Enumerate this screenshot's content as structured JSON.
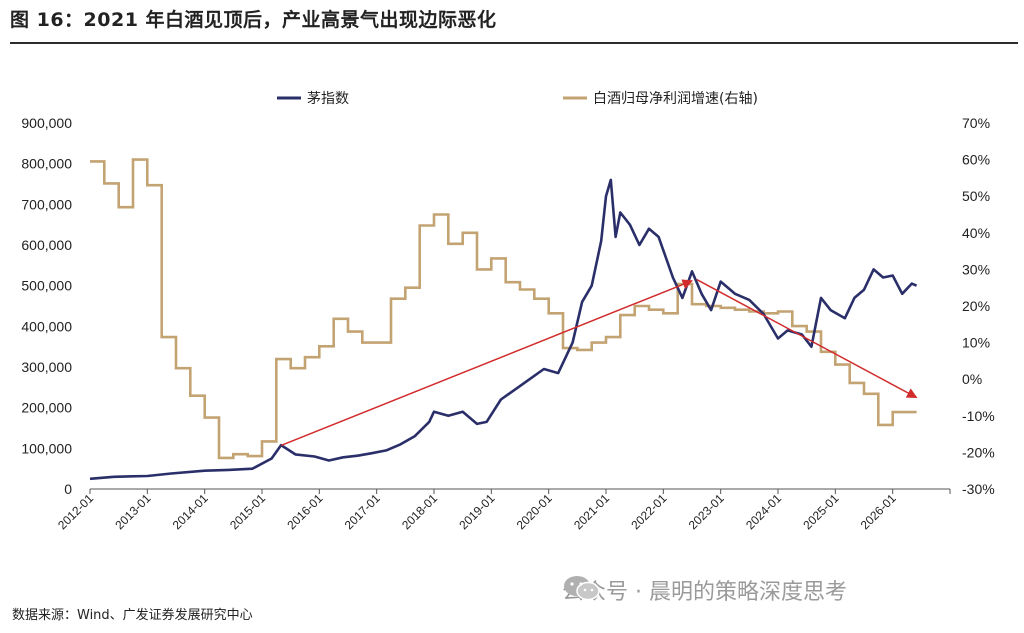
{
  "header": {
    "title": "图 16：2021 年白酒见顶后，产业高景气出现边际恶化"
  },
  "footer": {
    "source": "数据来源：Wind、广发证券发展研究中心",
    "watermark": "公众号 · 晨明的策略深度思考",
    "watermark_icon": "wechat-icon"
  },
  "colors": {
    "series1": "#2a2f6a",
    "series2": "#c4a373",
    "arrow": "#d22c2c",
    "axis": "#555555"
  },
  "chart_data": {
    "type": "line",
    "legend_position": "top",
    "grid": false,
    "x_ticks": [
      "2012-01",
      "2013-01",
      "2014-01",
      "2015-01",
      "2016-01",
      "2017-01",
      "2018-01",
      "2019-01",
      "2020-01",
      "2021-01",
      "2022-01",
      "2023-01",
      "2024-01",
      "2025-01",
      "2026-01"
    ],
    "y_left": {
      "min": 0,
      "max": 900000,
      "ticks": [
        "0",
        "100,000",
        "200,000",
        "300,000",
        "400,000",
        "500,000",
        "600,000",
        "700,000",
        "800,000",
        "900,000"
      ]
    },
    "y_right": {
      "min": -30,
      "max": 70,
      "ticks": [
        "-30%",
        "-20%",
        "-10%",
        "0%",
        "10%",
        "20%",
        "30%",
        "40%",
        "50%",
        "60%",
        "70%"
      ]
    },
    "series": [
      {
        "name": "茅指数",
        "axis": "left",
        "points": [
          [
            "2012-01",
            25000
          ],
          [
            "2012-06",
            30000
          ],
          [
            "2013-01",
            32000
          ],
          [
            "2013-06",
            38000
          ],
          [
            "2014-01",
            45000
          ],
          [
            "2014-06",
            47000
          ],
          [
            "2014-11",
            50000
          ],
          [
            "2015-03",
            75000
          ],
          [
            "2015-05",
            108000
          ],
          [
            "2015-08",
            85000
          ],
          [
            "2015-12",
            80000
          ],
          [
            "2016-03",
            70000
          ],
          [
            "2016-06",
            78000
          ],
          [
            "2016-09",
            82000
          ],
          [
            "2016-12",
            88000
          ],
          [
            "2017-03",
            95000
          ],
          [
            "2017-06",
            110000
          ],
          [
            "2017-09",
            130000
          ],
          [
            "2017-12",
            165000
          ],
          [
            "2018-01",
            190000
          ],
          [
            "2018-04",
            180000
          ],
          [
            "2018-07",
            190000
          ],
          [
            "2018-10",
            160000
          ],
          [
            "2018-12",
            165000
          ],
          [
            "2019-03",
            220000
          ],
          [
            "2019-06",
            245000
          ],
          [
            "2019-09",
            270000
          ],
          [
            "2019-12",
            295000
          ],
          [
            "2020-03",
            285000
          ],
          [
            "2020-06",
            360000
          ],
          [
            "2020-08",
            460000
          ],
          [
            "2020-10",
            500000
          ],
          [
            "2020-12",
            610000
          ],
          [
            "2021-01",
            720000
          ],
          [
            "2021-02",
            760000
          ],
          [
            "2021-03",
            620000
          ],
          [
            "2021-04",
            680000
          ],
          [
            "2021-06",
            650000
          ],
          [
            "2021-08",
            600000
          ],
          [
            "2021-10",
            640000
          ],
          [
            "2021-12",
            620000
          ],
          [
            "2022-03",
            520000
          ],
          [
            "2022-05",
            470000
          ],
          [
            "2022-07",
            535000
          ],
          [
            "2022-09",
            480000
          ],
          [
            "2022-11",
            440000
          ],
          [
            "2023-01",
            510000
          ],
          [
            "2023-04",
            480000
          ],
          [
            "2023-07",
            465000
          ],
          [
            "2023-10",
            430000
          ],
          [
            "2024-01",
            370000
          ],
          [
            "2024-03",
            390000
          ],
          [
            "2024-06",
            380000
          ],
          [
            "2024-08",
            350000
          ],
          [
            "2024-10",
            470000
          ],
          [
            "2024-12",
            440000
          ],
          [
            "2025-03",
            420000
          ],
          [
            "2025-05",
            470000
          ],
          [
            "2025-07",
            490000
          ],
          [
            "2025-09",
            540000
          ],
          [
            "2025-11",
            520000
          ],
          [
            "2026-01",
            525000
          ],
          [
            "2026-03",
            480000
          ],
          [
            "2026-05",
            505000
          ],
          [
            "2026-06",
            500000
          ]
        ]
      },
      {
        "name": "白酒归母净利润增速(右轴)",
        "axis": "right",
        "points": [
          [
            "2012-01",
            59.5
          ],
          [
            "2012-04",
            59.5
          ],
          [
            "2012-04",
            53.5
          ],
          [
            "2012-07",
            53.5
          ],
          [
            "2012-07",
            47
          ],
          [
            "2012-10",
            47
          ],
          [
            "2012-10",
            60
          ],
          [
            "2013-01",
            60
          ],
          [
            "2013-01",
            53
          ],
          [
            "2013-04",
            53
          ],
          [
            "2013-04",
            11.5
          ],
          [
            "2013-07",
            11.5
          ],
          [
            "2013-07",
            3
          ],
          [
            "2013-10",
            3
          ],
          [
            "2013-10",
            -4.5
          ],
          [
            "2014-01",
            -4.5
          ],
          [
            "2014-01",
            -10.5
          ],
          [
            "2014-04",
            -10.5
          ],
          [
            "2014-04",
            -21.5
          ],
          [
            "2014-07",
            -21.5
          ],
          [
            "2014-07",
            -20.5
          ],
          [
            "2014-10",
            -20.5
          ],
          [
            "2014-10",
            -21
          ],
          [
            "2015-01",
            -21
          ],
          [
            "2015-01",
            -17
          ],
          [
            "2015-04",
            -17
          ],
          [
            "2015-04",
            5.5
          ],
          [
            "2015-07",
            5.5
          ],
          [
            "2015-07",
            3
          ],
          [
            "2015-10",
            3
          ],
          [
            "2015-10",
            6
          ],
          [
            "2016-01",
            6
          ],
          [
            "2016-01",
            9
          ],
          [
            "2016-04",
            9
          ],
          [
            "2016-04",
            16.5
          ],
          [
            "2016-07",
            16.5
          ],
          [
            "2016-07",
            13
          ],
          [
            "2016-10",
            13
          ],
          [
            "2016-10",
            10
          ],
          [
            "2017-01",
            10
          ],
          [
            "2017-01",
            10
          ],
          [
            "2017-04",
            10
          ],
          [
            "2017-04",
            22
          ],
          [
            "2017-07",
            22
          ],
          [
            "2017-07",
            25
          ],
          [
            "2017-10",
            25
          ],
          [
            "2017-10",
            42
          ],
          [
            "2018-01",
            42
          ],
          [
            "2018-01",
            45
          ],
          [
            "2018-04",
            45
          ],
          [
            "2018-04",
            37
          ],
          [
            "2018-07",
            37
          ],
          [
            "2018-07",
            40
          ],
          [
            "2018-10",
            40
          ],
          [
            "2018-10",
            30
          ],
          [
            "2019-01",
            30
          ],
          [
            "2019-01",
            33
          ],
          [
            "2019-04",
            33
          ],
          [
            "2019-04",
            26.5
          ],
          [
            "2019-07",
            26.5
          ],
          [
            "2019-07",
            24.5
          ],
          [
            "2019-10",
            24.5
          ],
          [
            "2019-10",
            22
          ],
          [
            "2020-01",
            22
          ],
          [
            "2020-01",
            18
          ],
          [
            "2020-04",
            18
          ],
          [
            "2020-04",
            8.5
          ],
          [
            "2020-07",
            8.5
          ],
          [
            "2020-07",
            8
          ],
          [
            "2020-10",
            8
          ],
          [
            "2020-10",
            10
          ],
          [
            "2021-01",
            10
          ],
          [
            "2021-01",
            11.5
          ],
          [
            "2021-04",
            11.5
          ],
          [
            "2021-04",
            17.5
          ],
          [
            "2021-07",
            17.5
          ],
          [
            "2021-07",
            20
          ],
          [
            "2021-10",
            20
          ],
          [
            "2021-10",
            19
          ],
          [
            "2022-01",
            19
          ],
          [
            "2022-01",
            18
          ],
          [
            "2022-04",
            18
          ],
          [
            "2022-04",
            26
          ],
          [
            "2022-07",
            26
          ],
          [
            "2022-07",
            20.5
          ],
          [
            "2022-10",
            20.5
          ],
          [
            "2022-10",
            20
          ],
          [
            "2023-01",
            20
          ],
          [
            "2023-01",
            19.5
          ],
          [
            "2023-04",
            19.5
          ],
          [
            "2023-04",
            19
          ],
          [
            "2023-07",
            19
          ],
          [
            "2023-07",
            18.5
          ],
          [
            "2023-10",
            18.5
          ],
          [
            "2023-10",
            18
          ],
          [
            "2024-01",
            18
          ],
          [
            "2024-01",
            18.5
          ],
          [
            "2024-04",
            18.5
          ],
          [
            "2024-04",
            14.5
          ],
          [
            "2024-07",
            14.5
          ],
          [
            "2024-07",
            13
          ],
          [
            "2024-10",
            13
          ],
          [
            "2024-10",
            7.5
          ],
          [
            "2025-01",
            7.5
          ],
          [
            "2025-01",
            4
          ],
          [
            "2025-04",
            4
          ],
          [
            "2025-04",
            -1
          ],
          [
            "2025-07",
            -1
          ],
          [
            "2025-07",
            -4
          ],
          [
            "2025-10",
            -4
          ],
          [
            "2025-10",
            -12.5
          ],
          [
            "2026-01",
            -12.5
          ],
          [
            "2026-01",
            -9
          ],
          [
            "2026-06",
            -9
          ]
        ]
      }
    ],
    "arrows": [
      {
        "from": [
          "2015-05",
          107000
        ],
        "to": [
          "2022-07",
          512000
        ]
      },
      {
        "from": [
          "2022-08",
          515000
        ],
        "to": [
          "2026-06",
          225000
        ]
      }
    ]
  }
}
